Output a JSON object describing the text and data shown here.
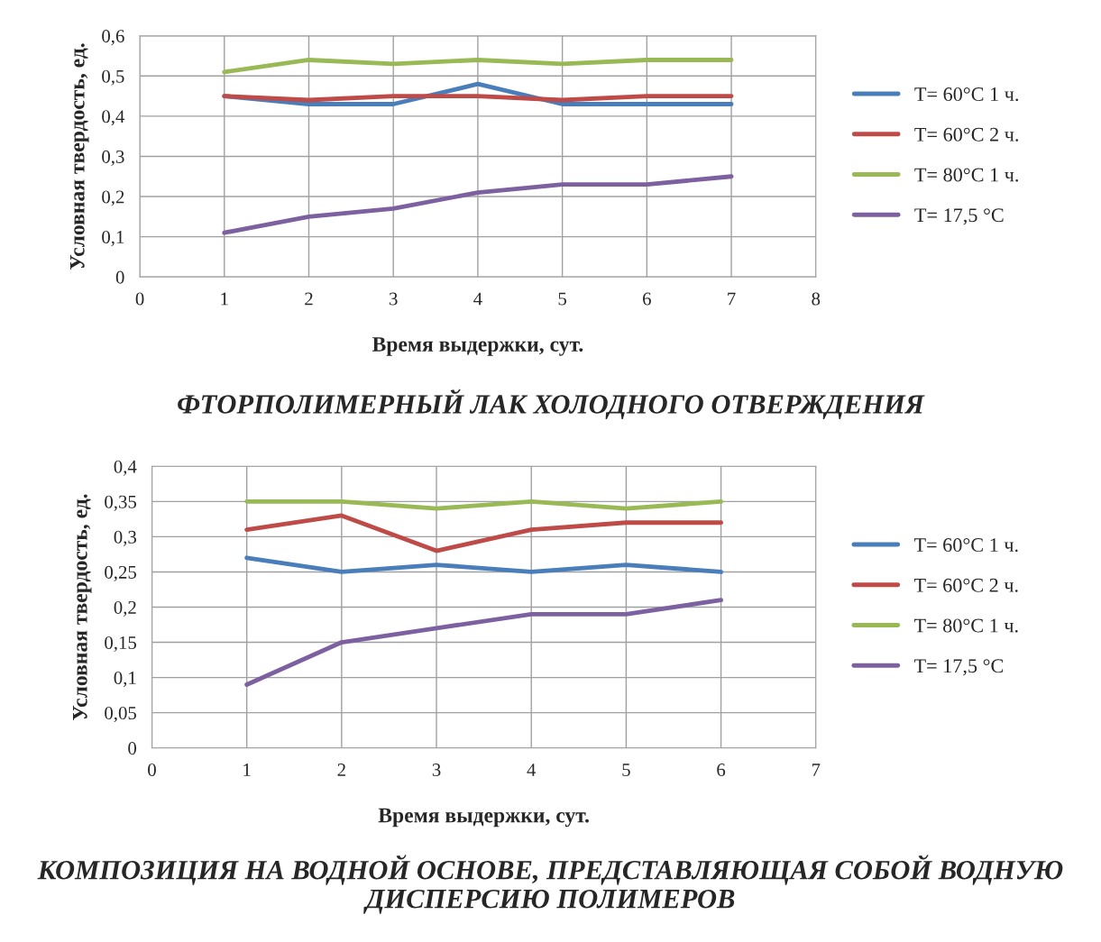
{
  "chart_data": [
    {
      "type": "line",
      "xlabel": "Время выдержки, сут.",
      "ylabel": "Условная твердость, ед.",
      "x": [
        1,
        2,
        3,
        4,
        5,
        6,
        7
      ],
      "series": [
        {
          "name": "T= 60°C 1 ч.",
          "color": "#4a7ebb",
          "values": [
            0.45,
            0.43,
            0.43,
            0.48,
            0.43,
            0.43,
            0.43
          ]
        },
        {
          "name": "T= 60°C 2 ч.",
          "color": "#be4b48",
          "values": [
            0.45,
            0.44,
            0.45,
            0.45,
            0.44,
            0.45,
            0.45
          ]
        },
        {
          "name": "T= 80°C 1 ч.",
          "color": "#98b954",
          "values": [
            0.51,
            0.54,
            0.53,
            0.54,
            0.53,
            0.54,
            0.54
          ]
        },
        {
          "name": "T= 17,5 °C",
          "color": "#7d60a0",
          "values": [
            0.11,
            0.15,
            0.17,
            0.21,
            0.23,
            0.23,
            0.25
          ]
        }
      ],
      "xlim": [
        0,
        8
      ],
      "xticks": [
        0,
        1,
        2,
        3,
        4,
        5,
        6,
        7,
        8
      ],
      "ylim": [
        0,
        0.6
      ],
      "yticks": [
        0,
        {
          "value": 0.1,
          "label": "0,1"
        },
        {
          "value": 0.2,
          "label": "0,2"
        },
        {
          "value": 0.3,
          "label": "0,3"
        },
        {
          "value": 0.4,
          "label": "0,4"
        },
        {
          "value": 0.5,
          "label": "0,5"
        },
        {
          "value": 0.6,
          "label": "0,6"
        }
      ],
      "grid": true,
      "legend": "right",
      "marker": "none",
      "line_style": "solid",
      "annotations": [
        "ФТОРПОЛИМЕРНЫЙ ЛАК ХОЛОДНОГО ОТВЕРЖДЕНИЯ"
      ]
    },
    {
      "type": "line",
      "xlabel": "Время выдержки, сут.",
      "ylabel": "Условная твердость, ед.",
      "x": [
        1,
        2,
        3,
        4,
        5,
        6
      ],
      "series": [
        {
          "name": "T= 60°C 1 ч.",
          "color": "#4a7ebb",
          "values": [
            0.27,
            0.25,
            0.26,
            0.25,
            0.26,
            0.25
          ]
        },
        {
          "name": "T= 60°C 2 ч.",
          "color": "#be4b48",
          "values": [
            0.31,
            0.33,
            0.28,
            0.31,
            0.32,
            0.32
          ]
        },
        {
          "name": "T= 80°C 1 ч.",
          "color": "#98b954",
          "values": [
            0.35,
            0.35,
            0.34,
            0.35,
            0.34,
            0.35
          ]
        },
        {
          "name": "T= 17,5 °C",
          "color": "#7d60a0",
          "values": [
            0.09,
            0.15,
            0.17,
            0.19,
            0.19,
            0.21
          ]
        }
      ],
      "xlim": [
        0,
        7
      ],
      "xticks": [
        0,
        1,
        2,
        3,
        4,
        5,
        6,
        7
      ],
      "ylim": [
        0,
        0.4
      ],
      "yticks": [
        0,
        {
          "value": 0.05,
          "label": "0,05"
        },
        {
          "value": 0.1,
          "label": "0,1"
        },
        {
          "value": 0.15,
          "label": "0,15"
        },
        {
          "value": 0.2,
          "label": "0,2"
        },
        {
          "value": 0.25,
          "label": "0,25"
        },
        {
          "value": 0.3,
          "label": "0,3"
        },
        {
          "value": 0.35,
          "label": "0,35"
        },
        {
          "value": 0.4,
          "label": "0,4"
        }
      ],
      "grid": true,
      "legend": "right",
      "marker": "none",
      "line_style": "solid",
      "annotations": [
        "КОМПОЗИЦИЯ НА ВОДНОЙ ОСНОВЕ, ПРЕДСТАВЛЯЮЩАЯ СОБОЙ ВОДНУЮ ДИСПЕРСИЮ ПОЛИМЕРОВ"
      ]
    }
  ]
}
